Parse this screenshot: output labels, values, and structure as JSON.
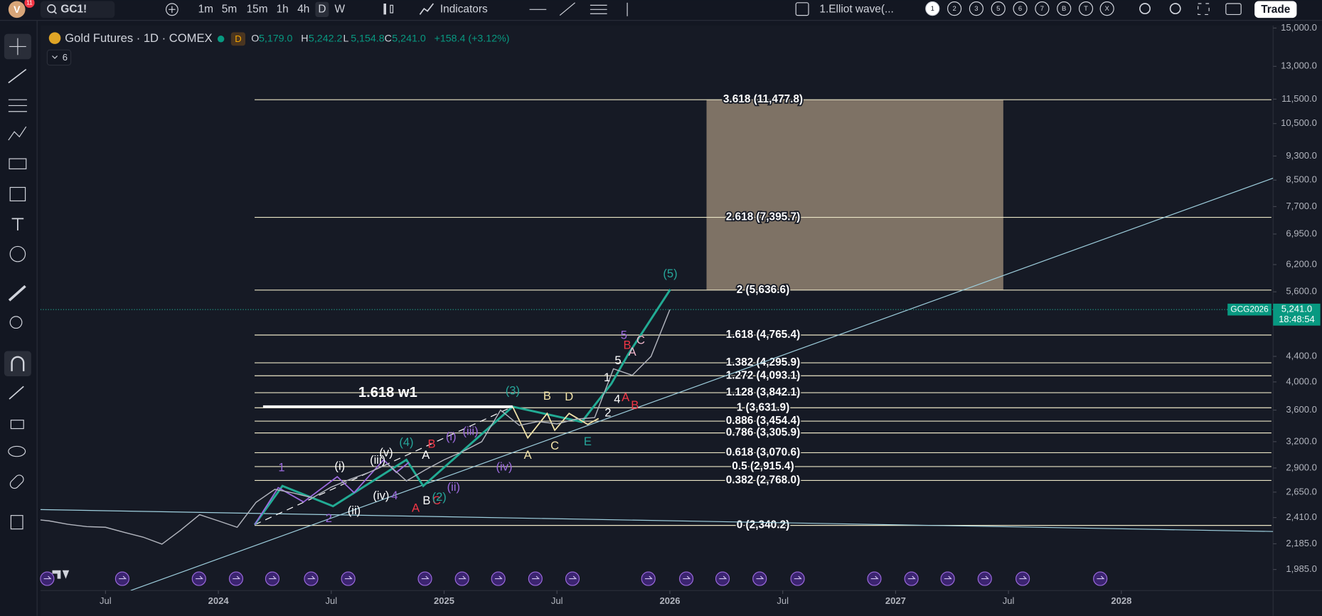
{
  "top_bar": {
    "avatar": "V",
    "badge": "11",
    "symbol": "GC1!",
    "intervals": [
      "1m",
      "5m",
      "15m",
      "1h",
      "4h",
      "D",
      "W"
    ],
    "active_interval": 5,
    "indicators": "Indicators",
    "layout": "1.Elliot wave(...",
    "layout_tabs": [
      "1",
      "2",
      "3",
      "5",
      "6",
      "7",
      "B",
      "T",
      "X"
    ],
    "trade": "Trade"
  },
  "legend": {
    "title": "Gold Futures · 1D · COMEX",
    "session": "D",
    "ohlc": [
      {
        "key": "O",
        "value": "5,179.0"
      },
      {
        "key": "H",
        "value": "5,242.2"
      },
      {
        "key": "L",
        "value": "5,154.8"
      },
      {
        "key": "C",
        "value": "5,241.0"
      }
    ],
    "change": "+158.4 (+3.12%)",
    "collapsed": "6"
  },
  "chart_data": {
    "type": "line",
    "log_scale": true,
    "color": "#b2b5be",
    "x": [
      "2023-03",
      "2023-04",
      "2023-05",
      "2023-06",
      "2023-07",
      "2023-08",
      "2023-09",
      "2023-10",
      "2023-11",
      "2023-12",
      "2024-01",
      "2024-02",
      "2024-03",
      "2024-04",
      "2024-05",
      "2024-06",
      "2024-07",
      "2024-08",
      "2024-09",
      "2024-10",
      "2024-11",
      "2024-12",
      "2025-01",
      "2025-02",
      "2025-03",
      "2025-04",
      "2025-05",
      "2025-06",
      "2025-07",
      "2025-08",
      "2025-09",
      "2025-10",
      "2025-11",
      "2025-12",
      "2026-01"
    ],
    "values": [
      2398,
      2380,
      2350,
      2330,
      2324,
      2280,
      2240,
      2182,
      2300,
      2436,
      2380,
      2324,
      2550,
      2678,
      2640,
      2594,
      2700,
      2780,
      2852,
      2943,
      2763,
      2880,
      2990,
      3085,
      3200,
      3600,
      3400,
      3450,
      3420,
      3480,
      3500,
      4200,
      4100,
      4400,
      5241
    ],
    "xlim": [
      "2023-03",
      "2028-09"
    ],
    "xticks": [
      {
        "value": "2023-07",
        "label": "Jul"
      },
      {
        "value": "2024-01",
        "label": "2024"
      },
      {
        "value": "2024-07",
        "label": "Jul"
      },
      {
        "value": "2025-01",
        "label": "2025"
      },
      {
        "value": "2025-07",
        "label": "Jul"
      },
      {
        "value": "2026-01",
        "label": "2026"
      },
      {
        "value": "2026-07",
        "label": "Jul"
      },
      {
        "value": "2027-01",
        "label": "2027"
      },
      {
        "value": "2027-07",
        "label": "Jul"
      },
      {
        "value": "2028-01",
        "label": "2028"
      }
    ],
    "ylim": [
      1835,
      15145
    ],
    "yticks": [
      {
        "value": 15000,
        "label": "15,000.0"
      },
      {
        "value": 13000,
        "label": "13,000.0"
      },
      {
        "value": 11500,
        "label": "11,500.0"
      },
      {
        "value": 10500,
        "label": "10,500.0"
      },
      {
        "value": 9300,
        "label": "9,300.0"
      },
      {
        "value": 8500,
        "label": "8,500.0"
      },
      {
        "value": 7700,
        "label": "7,700.0"
      },
      {
        "value": 6950,
        "label": "6,950.0"
      },
      {
        "value": 6200,
        "label": "6,200.0"
      },
      {
        "value": 5600,
        "label": "5,600.0"
      },
      {
        "value": 4400,
        "label": "4,400.0"
      },
      {
        "value": 4000,
        "label": "4,000.0"
      },
      {
        "value": 3600,
        "label": "3,600.0"
      },
      {
        "value": 3200,
        "label": "3,200.0"
      },
      {
        "value": 2900,
        "label": "2,900.0"
      },
      {
        "value": 2650,
        "label": "2,650.0"
      },
      {
        "value": 2410,
        "label": "2,410.0"
      },
      {
        "value": 2185,
        "label": "2,185.0"
      },
      {
        "value": 1985,
        "label": "1,985.0"
      }
    ],
    "last_price": {
      "value": 5241,
      "label": "5,241.0",
      "symbol": "GCG2026",
      "countdown": "18:48:54"
    },
    "fib_levels": [
      {
        "price": 11477.8,
        "label": "3.618 (11,477.8)"
      },
      {
        "price": 7395.7,
        "label": "2.618 (7,395.7)"
      },
      {
        "price": 5636.6,
        "label": "2 (5,636.6)"
      },
      {
        "price": 4765.4,
        "label": "1.618 (4,765.4)"
      },
      {
        "price": 4295.9,
        "label": "1.382 (4,295.9)"
      },
      {
        "price": 4093.1,
        "label": "1.272 (4,093.1)"
      },
      {
        "price": 3842.1,
        "label": "1.128 (3,842.1)"
      },
      {
        "price": 3631.9,
        "label": "1 (3,631.9)"
      },
      {
        "price": 3454.4,
        "label": "0.886 (3,454.4)"
      },
      {
        "price": 3305.9,
        "label": "0.786 (3,305.9)"
      },
      {
        "price": 3070.6,
        "label": "0.618 (3,070.6)"
      },
      {
        "price": 2915.4,
        "label": "0.5 (2,915.4)"
      },
      {
        "price": 2768.0,
        "label": "0.382 (2,768.0)"
      },
      {
        "price": 2340.2,
        "label": "0 (2,340.2)"
      }
    ],
    "annotation": "1.618 w1",
    "wave_labels": [
      "(5)",
      "(3)",
      "B",
      "D",
      "A",
      "C",
      "E",
      "1",
      "(i)",
      "(ii)",
      "(iii)",
      "(iv)",
      "(v)",
      "(4)",
      "A",
      "B",
      "A",
      "B",
      "C",
      "(2)",
      "(i)",
      "(ii)",
      "(iii)",
      "(iv)",
      "2",
      "4",
      "1",
      "5",
      "4",
      "2",
      "A",
      "B",
      "A",
      "C",
      "B",
      "5"
    ]
  }
}
